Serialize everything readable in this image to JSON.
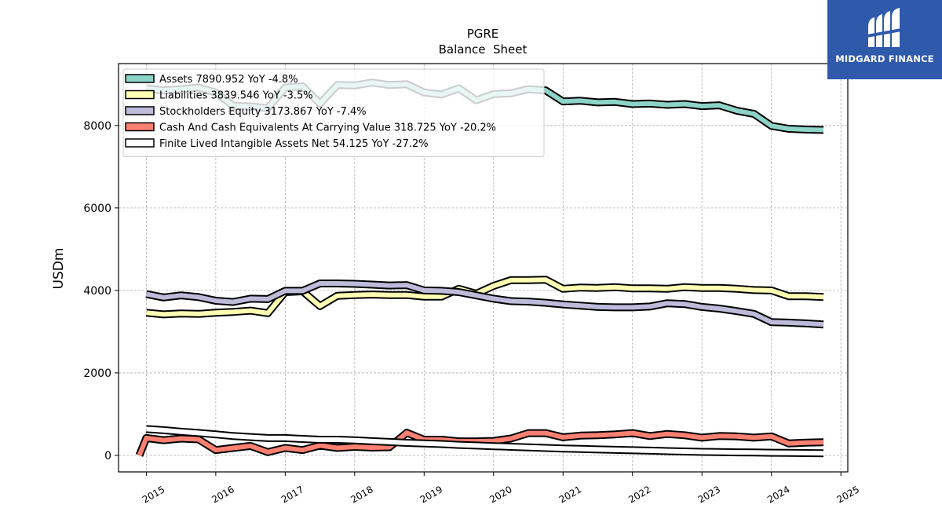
{
  "brand": {
    "name": "MIDGARD FINANCE",
    "color": "#2f5aab"
  },
  "chart_data": {
    "type": "line",
    "title": "PGRE",
    "subtitle": "Balance  Sheet",
    "xlabel": "",
    "ylabel": "USDm",
    "xlim": [
      2014.6,
      2025.1
    ],
    "ylim": [
      -400,
      9500
    ],
    "xticks": [
      "2015",
      "2016",
      "2017",
      "2018",
      "2019",
      "2020",
      "2021",
      "2022",
      "2023",
      "2024",
      "2025"
    ],
    "yticks": [
      "0",
      "2000",
      "4000",
      "6000",
      "8000"
    ],
    "grid": true,
    "legend_position": "upper-left",
    "series": [
      {
        "name": "Assets",
        "legend": "Assets  7890.952 YoY -4.8%",
        "color": "#8dd3c7",
        "x": [
          2015.0,
          2015.25,
          2015.5,
          2015.75,
          2016.0,
          2016.25,
          2016.5,
          2016.75,
          2017.0,
          2017.25,
          2017.5,
          2017.75,
          2018.0,
          2018.25,
          2018.5,
          2018.75,
          2019.0,
          2019.25,
          2019.5,
          2019.75,
          2020.0,
          2020.25,
          2020.5,
          2020.75,
          2021.0,
          2021.25,
          2021.5,
          2021.75,
          2022.0,
          2022.25,
          2022.5,
          2022.75,
          2023.0,
          2023.25,
          2023.5,
          2023.75,
          2024.0,
          2024.25,
          2024.5,
          2024.75
        ],
        "values": [
          8900,
          8850,
          8880,
          8920,
          8800,
          8480,
          8460,
          8420,
          8920,
          8950,
          8530,
          8980,
          8970,
          9040,
          8980,
          9000,
          8800,
          8750,
          8900,
          8610,
          8760,
          8780,
          8880,
          8850,
          8580,
          8600,
          8560,
          8570,
          8520,
          8530,
          8500,
          8520,
          8470,
          8490,
          8360,
          8280,
          7990,
          7920,
          7900,
          7891
        ]
      },
      {
        "name": "Liabilities",
        "legend": "Liabilities  3839.546 YoY -3.5%",
        "color": "#ffffb3",
        "x": [
          2015.0,
          2015.25,
          2015.5,
          2015.75,
          2016.0,
          2016.25,
          2016.5,
          2016.75,
          2017.0,
          2017.25,
          2017.5,
          2017.75,
          2018.0,
          2018.25,
          2018.5,
          2018.75,
          2019.0,
          2019.25,
          2019.5,
          2019.75,
          2020.0,
          2020.25,
          2020.5,
          2020.75,
          2021.0,
          2021.25,
          2021.5,
          2021.75,
          2022.0,
          2022.25,
          2022.5,
          2022.75,
          2023.0,
          2023.25,
          2023.5,
          2023.75,
          2024.0,
          2024.25,
          2024.5,
          2024.75
        ],
        "values": [
          3460,
          3420,
          3440,
          3430,
          3460,
          3480,
          3510,
          3450,
          3960,
          3980,
          3620,
          3870,
          3890,
          3900,
          3890,
          3890,
          3850,
          3850,
          4040,
          3920,
          4110,
          4250,
          4250,
          4260,
          4040,
          4070,
          4060,
          4080,
          4050,
          4050,
          4040,
          4080,
          4060,
          4060,
          4040,
          4010,
          4000,
          3860,
          3860,
          3840
        ]
      },
      {
        "name": "Stockholders Equity",
        "legend": "Stockholders Equity  3173.867 YoY -7.4%",
        "color": "#bebada",
        "x": [
          2015.0,
          2015.25,
          2015.5,
          2015.75,
          2016.0,
          2016.25,
          2016.5,
          2016.75,
          2017.0,
          2017.25,
          2017.5,
          2017.75,
          2018.0,
          2018.25,
          2018.5,
          2018.75,
          2019.0,
          2019.25,
          2019.5,
          2019.75,
          2020.0,
          2020.25,
          2020.5,
          2020.75,
          2021.0,
          2021.25,
          2021.5,
          2021.75,
          2022.0,
          2022.25,
          2022.5,
          2022.75,
          2023.0,
          2023.25,
          2023.5,
          2023.75,
          2024.0,
          2024.25,
          2024.5,
          2024.75
        ],
        "values": [
          3910,
          3830,
          3880,
          3840,
          3750,
          3720,
          3800,
          3790,
          3990,
          3990,
          4170,
          4170,
          4160,
          4140,
          4120,
          4130,
          4000,
          3990,
          3960,
          3880,
          3800,
          3740,
          3730,
          3700,
          3660,
          3630,
          3600,
          3590,
          3590,
          3610,
          3690,
          3670,
          3600,
          3560,
          3500,
          3430,
          3230,
          3220,
          3200,
          3174
        ]
      },
      {
        "name": "Cash And Cash Equivalents At Carrying Value",
        "legend": "Cash And Cash Equivalents At Carrying Value  318.725 YoY -20.2%",
        "color": "#fb8072",
        "x": [
          2014.9,
          2015.0,
          2015.25,
          2015.5,
          2015.75,
          2016.0,
          2016.25,
          2016.5,
          2016.75,
          2017.0,
          2017.25,
          2017.5,
          2017.75,
          2018.0,
          2018.25,
          2018.5,
          2018.75,
          2019.0,
          2019.25,
          2019.5,
          2019.75,
          2020.0,
          2020.25,
          2020.5,
          2020.75,
          2021.0,
          2021.25,
          2021.5,
          2021.75,
          2022.0,
          2022.25,
          2022.5,
          2022.75,
          2023.0,
          2023.25,
          2023.5,
          2023.75,
          2024.0,
          2024.25,
          2024.5,
          2024.75
        ],
        "values": [
          0,
          420,
          370,
          410,
          390,
          130,
          180,
          230,
          80,
          180,
          130,
          240,
          180,
          210,
          190,
          200,
          550,
          380,
          380,
          340,
          340,
          350,
          410,
          540,
          540,
          440,
          480,
          490,
          510,
          540,
          470,
          520,
          490,
          430,
          470,
          460,
          430,
          460,
          290,
          310,
          319
        ]
      },
      {
        "name": "Finite Lived Intangible Assets Net",
        "legend": "Finite Lived Intangible Assets Net  54.125 YoY -27.2%",
        "color": "#ffffff",
        "x": [
          2015.0,
          2015.25,
          2015.5,
          2015.75,
          2016.0,
          2016.25,
          2016.5,
          2016.75,
          2017.0,
          2017.25,
          2017.5,
          2017.75,
          2018.0,
          2018.25,
          2018.5,
          2018.75,
          2019.0,
          2019.25,
          2019.5,
          2019.75,
          2020.0,
          2020.25,
          2020.5,
          2020.75,
          2021.0,
          2021.25,
          2021.5,
          2021.75,
          2022.0,
          2022.25,
          2022.5,
          2022.75,
          2023.0,
          2023.25,
          2023.5,
          2023.75,
          2024.0,
          2024.25,
          2024.5,
          2024.75
        ],
        "values": [
          640,
          610,
          575,
          545,
          510,
          470,
          445,
          420,
          420,
          400,
          380,
          380,
          365,
          345,
          325,
          305,
          290,
          275,
          255,
          240,
          225,
          210,
          195,
          180,
          165,
          155,
          145,
          135,
          125,
          115,
          105,
          95,
          85,
          80,
          75,
          70,
          65,
          60,
          56,
          54
        ]
      }
    ]
  }
}
